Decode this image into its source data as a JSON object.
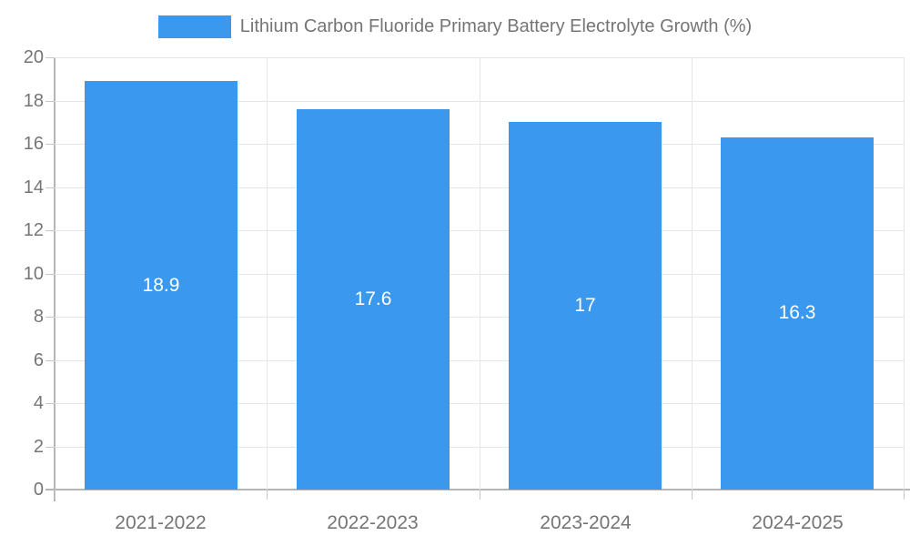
{
  "chart_data": {
    "type": "bar",
    "title": "Lithium Carbon Fluoride Primary Battery Electrolyte Growth (%)",
    "categories": [
      "2021-2022",
      "2022-2023",
      "2023-2024",
      "2024-2025"
    ],
    "values": [
      18.9,
      17.6,
      17,
      16.3
    ],
    "value_labels": [
      "18.9",
      "17.6",
      "17",
      "16.3"
    ],
    "xlabel": "",
    "ylabel": "",
    "ylim": [
      0,
      20
    ],
    "y_ticks": [
      0,
      2,
      4,
      6,
      8,
      10,
      12,
      14,
      16,
      18,
      20
    ],
    "legend_position": "top",
    "grid": "both",
    "value_label_position": "inside-center",
    "colors": {
      "bar": "#3a99ee",
      "grid_line": "#e6e6e6",
      "axis_line": "#b5b5b5",
      "tick_mark": "#c6c6c6",
      "tick_label": "#757575",
      "value_label": "#ffffff",
      "background": "#ffffff"
    }
  }
}
